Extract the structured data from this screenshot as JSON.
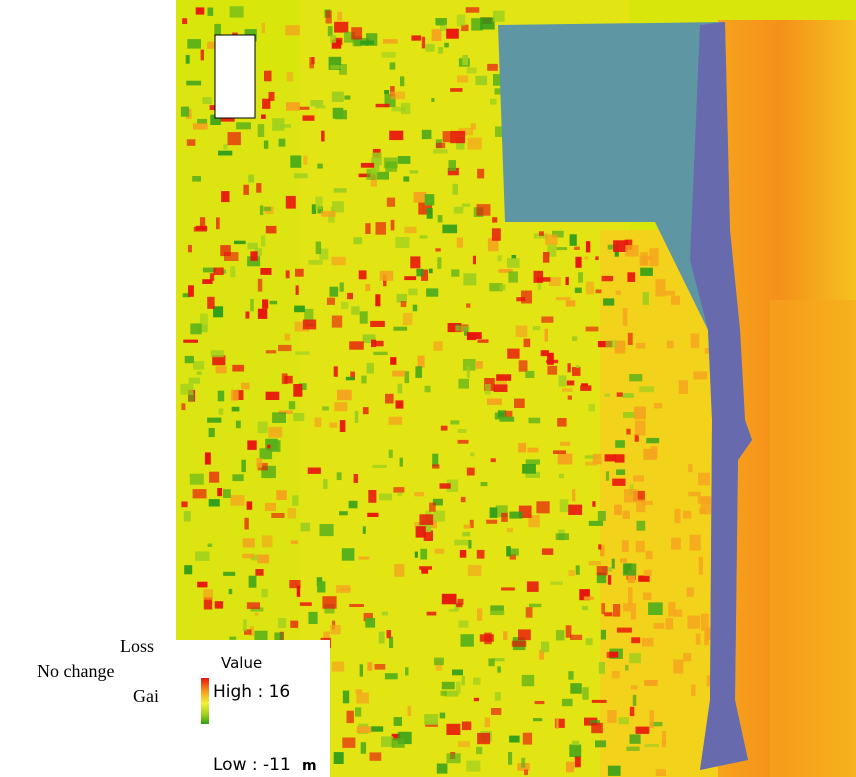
{
  "annotations": {
    "loss": "Loss",
    "no_change": "No change",
    "gain": "Gain"
  },
  "legend": {
    "title": "Value",
    "high": "High : 16",
    "low": "Low : -11",
    "unit": "m"
  }
}
